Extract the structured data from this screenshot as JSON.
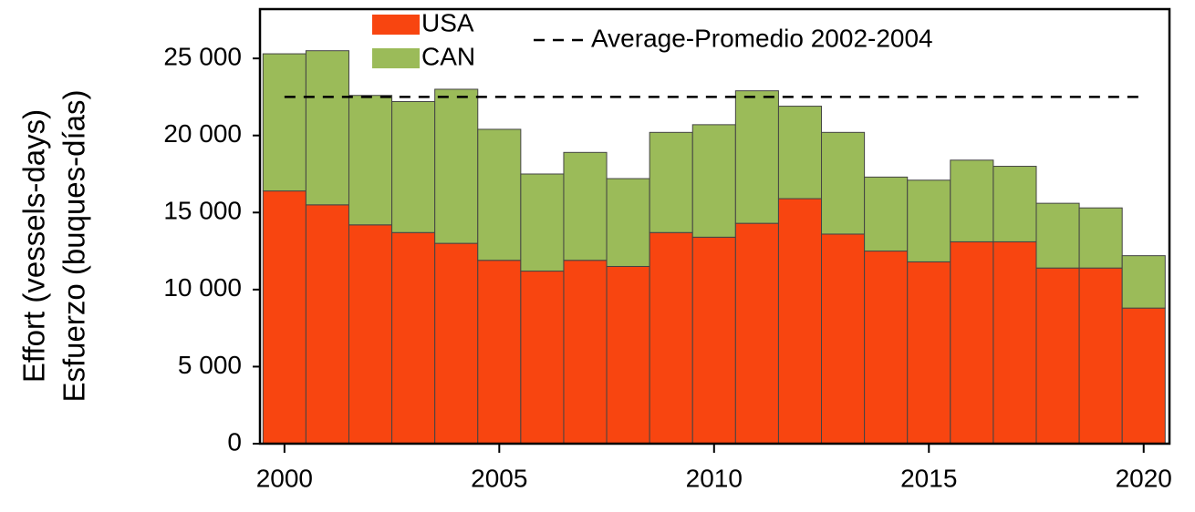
{
  "chart_data": {
    "type": "stacked_bar",
    "ylabel": [
      "Effort (vessels-days)",
      "Esfuerzo (buques-días)"
    ],
    "x": [
      2000,
      2001,
      2002,
      2003,
      2004,
      2005,
      2006,
      2007,
      2008,
      2009,
      2010,
      2011,
      2012,
      2013,
      2014,
      2015,
      2016,
      2017,
      2018,
      2019,
      2020
    ],
    "series": [
      {
        "name": "USA",
        "color": "#f84510",
        "values": [
          16400,
          15500,
          14200,
          13700,
          13000,
          11900,
          11200,
          11900,
          11500,
          13700,
          13400,
          14300,
          15900,
          13600,
          12500,
          11800,
          13100,
          13100,
          11400,
          11400,
          8800
        ]
      },
      {
        "name": "CAN",
        "color": "#9bbb59",
        "values": [
          8900,
          10000,
          8400,
          8500,
          10000,
          8500,
          6300,
          7000,
          5700,
          6500,
          7300,
          8600,
          6000,
          6600,
          4800,
          5300,
          5300,
          4900,
          4200,
          3900,
          3400
        ]
      }
    ],
    "reference_line": {
      "label": "Average-Promedio 2002-2004",
      "value": 22500
    },
    "xlim": [
      1999.43,
      2020.6
    ],
    "xticks": [
      2000,
      2005,
      2010,
      2015,
      2020
    ],
    "ylim": [
      0,
      28200
    ],
    "yticks": [
      {
        "value": 0,
        "label": "0"
      },
      {
        "value": 5000,
        "label": "5 000"
      },
      {
        "value": 10000,
        "label": "10 000"
      },
      {
        "value": 15000,
        "label": "15 000"
      },
      {
        "value": 20000,
        "label": "20 000"
      },
      {
        "value": 25000,
        "label": "25 000"
      }
    ]
  }
}
